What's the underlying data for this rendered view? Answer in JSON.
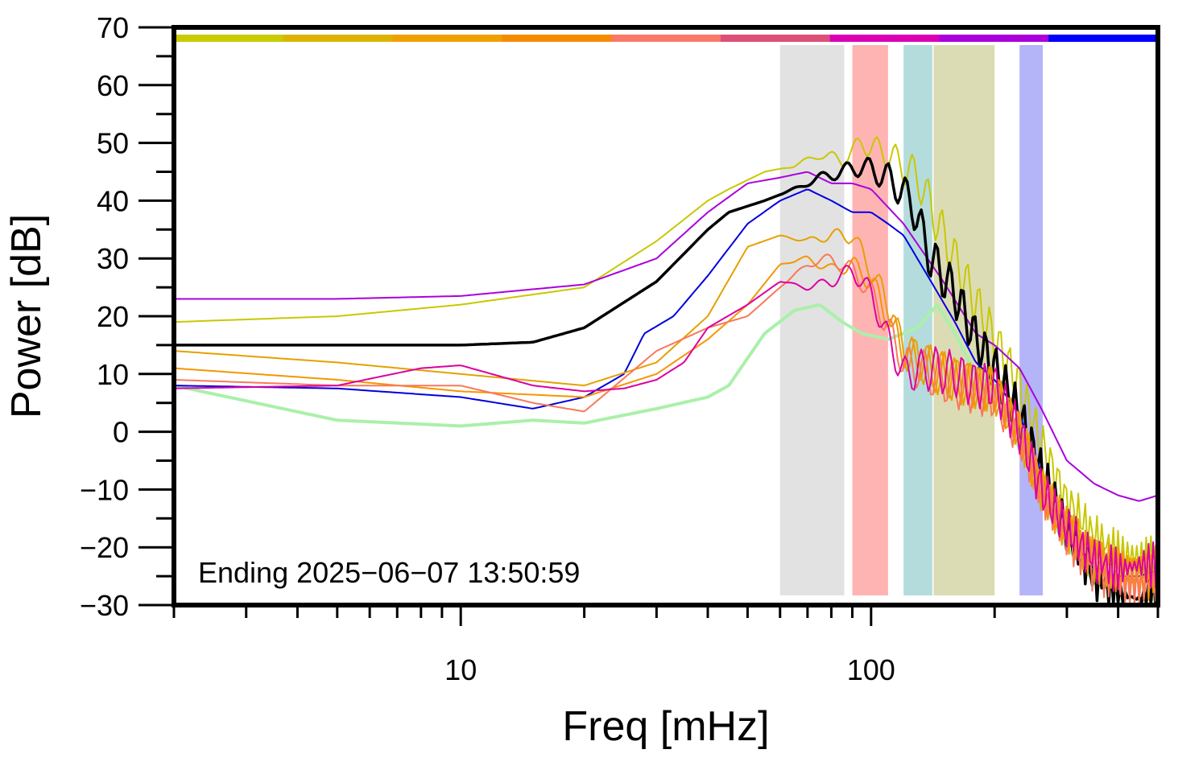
{
  "chart_data": {
    "type": "line",
    "xlabel": "Freq [mHz]",
    "ylabel": "Power [dB]",
    "annotation": "Ending 2025−06−07 13:50:59",
    "x_scale": "log",
    "xlim": [
      2,
      500
    ],
    "ylim": [
      -30,
      70
    ],
    "x_ticks": [
      {
        "value": 10,
        "label": "10"
      },
      {
        "value": 100,
        "label": "100"
      }
    ],
    "y_ticks": [
      {
        "value": 70,
        "label": "70"
      },
      {
        "value": 60,
        "label": "60"
      },
      {
        "value": 50,
        "label": "50"
      },
      {
        "value": 40,
        "label": "40"
      },
      {
        "value": 30,
        "label": "30"
      },
      {
        "value": 20,
        "label": "20"
      },
      {
        "value": 10,
        "label": "10"
      },
      {
        "value": 0,
        "label": "0"
      },
      {
        "value": -10,
        "label": "−10"
      },
      {
        "value": -20,
        "label": "−20"
      },
      {
        "value": -30,
        "label": "−30"
      }
    ],
    "grid": false,
    "legend": "none",
    "top_color_bar": [
      "#c8cc00",
      "#dcb400",
      "#f0a000",
      "#f58c00",
      "#fa7868",
      "#dc5078",
      "#dc00b4",
      "#aa00dc",
      "#0000ff"
    ],
    "bands": [
      {
        "x0": 60,
        "x1": 86,
        "color": "#e2e2e2"
      },
      {
        "x0": 90,
        "x1": 110,
        "color": "#ffb4b4"
      },
      {
        "x0": 120,
        "x1": 141,
        "color": "#b4dcdc"
      },
      {
        "x0": 142,
        "x1": 200,
        "color": "#dcdcb4"
      },
      {
        "x0": 230,
        "x1": 262,
        "color": "#b4b4f8"
      }
    ],
    "series": [
      {
        "color": "#aaf0aa",
        "width": 4,
        "wiggle": false,
        "x": [
          2,
          5,
          10,
          15,
          20,
          30,
          40,
          45,
          55,
          65,
          75,
          85,
          95,
          110,
          130,
          145,
          160,
          180,
          200,
          230,
          260,
          300,
          350,
          400,
          450,
          500
        ],
        "y": [
          8,
          2,
          1,
          2,
          1.5,
          4,
          6,
          8,
          17,
          21,
          22,
          19,
          17,
          16,
          18,
          22,
          17,
          10,
          8,
          -3,
          -12,
          -20,
          -26,
          -28,
          -29,
          -29
        ]
      },
      {
        "color": "#c8c800",
        "width": 2,
        "wiggle": true,
        "x": [
          2,
          5,
          10,
          20,
          30,
          40,
          45,
          55,
          65,
          75,
          85,
          95,
          110,
          130,
          150,
          170,
          200,
          230,
          260,
          300,
          350,
          400,
          450,
          500
        ],
        "y": [
          19,
          20,
          22,
          25,
          33,
          40,
          42,
          45,
          46,
          48,
          47,
          50,
          48,
          44,
          34,
          26,
          16,
          8,
          -2,
          -12,
          -18,
          -21,
          -22,
          -22
        ]
      },
      {
        "color": "#aa00dc",
        "width": 2,
        "wiggle": false,
        "x": [
          2,
          5,
          10,
          20,
          30,
          40,
          50,
          60,
          70,
          80,
          90,
          100,
          120,
          150,
          180,
          200,
          230,
          260,
          300,
          350,
          400,
          450,
          500
        ],
        "y": [
          23,
          23,
          23.5,
          25.5,
          30,
          38,
          43,
          44,
          45,
          43,
          43,
          42,
          36,
          26,
          17,
          15,
          11,
          4,
          -5,
          -9,
          -11,
          -12,
          -11
        ]
      },
      {
        "color": "#000000",
        "width": 3.5,
        "wiggle": true,
        "x": [
          2,
          5,
          10,
          15,
          20,
          30,
          40,
          45,
          55,
          65,
          75,
          85,
          95,
          110,
          125,
          140,
          160,
          180,
          200,
          230,
          260,
          300,
          350,
          400,
          450,
          500
        ],
        "y": [
          15,
          15,
          15,
          15.5,
          18,
          26,
          35,
          38,
          40,
          42,
          44,
          45,
          46,
          44,
          40,
          30,
          24,
          16,
          11,
          3,
          -7,
          -17,
          -25,
          -28,
          -29,
          -29
        ]
      },
      {
        "color": "#0000e0",
        "width": 2,
        "wiggle": false,
        "x": [
          2,
          5,
          10,
          15,
          20,
          25,
          28,
          33,
          40,
          50,
          60,
          70,
          80,
          90,
          100,
          110,
          120,
          140,
          160,
          180,
          200,
          230,
          260,
          300,
          350,
          400,
          450,
          500
        ],
        "y": [
          8,
          7.5,
          6,
          4,
          6,
          10,
          17,
          20,
          27,
          36,
          40,
          42,
          40,
          38,
          38,
          36,
          34,
          26,
          19,
          12,
          9,
          3,
          -7,
          -16,
          -24,
          -25,
          -25,
          -24
        ]
      },
      {
        "color": "#e6a000",
        "width": 2,
        "wiggle": true,
        "x": [
          2,
          5,
          10,
          20,
          30,
          40,
          50,
          60,
          70,
          80,
          90,
          100,
          110,
          120,
          140,
          160,
          180,
          200,
          230,
          260,
          300,
          350,
          400,
          450,
          500
        ],
        "y": [
          14,
          12,
          10,
          8,
          12,
          20,
          32,
          34,
          33,
          34,
          34,
          28,
          22,
          14,
          11,
          9,
          8,
          7,
          0,
          -10,
          -17,
          -22,
          -24,
          -24,
          -24
        ]
      },
      {
        "color": "#f59600",
        "width": 2,
        "wiggle": true,
        "x": [
          2,
          5,
          10,
          20,
          30,
          40,
          50,
          60,
          70,
          80,
          90,
          100,
          110,
          120,
          140,
          160,
          180,
          200,
          230,
          260,
          300,
          350,
          400,
          450,
          500
        ],
        "y": [
          11,
          9,
          7,
          6,
          10,
          16,
          22,
          29,
          30,
          28,
          29,
          26,
          20,
          14,
          11,
          9,
          8,
          7,
          0,
          -10,
          -17,
          -22,
          -24,
          -25,
          -25
        ]
      },
      {
        "color": "#fa785a",
        "width": 2,
        "wiggle": true,
        "x": [
          2,
          5,
          10,
          15,
          20,
          30,
          40,
          50,
          60,
          70,
          80,
          90,
          100,
          110,
          120,
          140,
          160,
          180,
          200,
          230,
          260,
          300,
          350,
          400,
          450,
          500
        ],
        "y": [
          9,
          8,
          8,
          5,
          3.5,
          14,
          18,
          20,
          25,
          29,
          30,
          28,
          24,
          18,
          12,
          10,
          8,
          7,
          6,
          -1,
          -10,
          -18,
          -24,
          -26,
          -27,
          -26
        ]
      },
      {
        "color": "#dc00a0",
        "width": 2,
        "wiggle": true,
        "x": [
          2,
          5,
          8,
          10,
          15,
          20,
          25,
          30,
          35,
          40,
          50,
          60,
          70,
          80,
          90,
          100,
          110,
          120,
          140,
          160,
          180,
          200,
          230,
          260,
          300,
          350,
          400,
          450,
          500
        ],
        "y": [
          7.5,
          8,
          11,
          11.5,
          8,
          7,
          7.5,
          9,
          12,
          18,
          22,
          26,
          25,
          26,
          28,
          24,
          16,
          10,
          11,
          10,
          8,
          8,
          0,
          -10,
          -17,
          -22,
          -24,
          -23,
          -23
        ]
      }
    ]
  }
}
